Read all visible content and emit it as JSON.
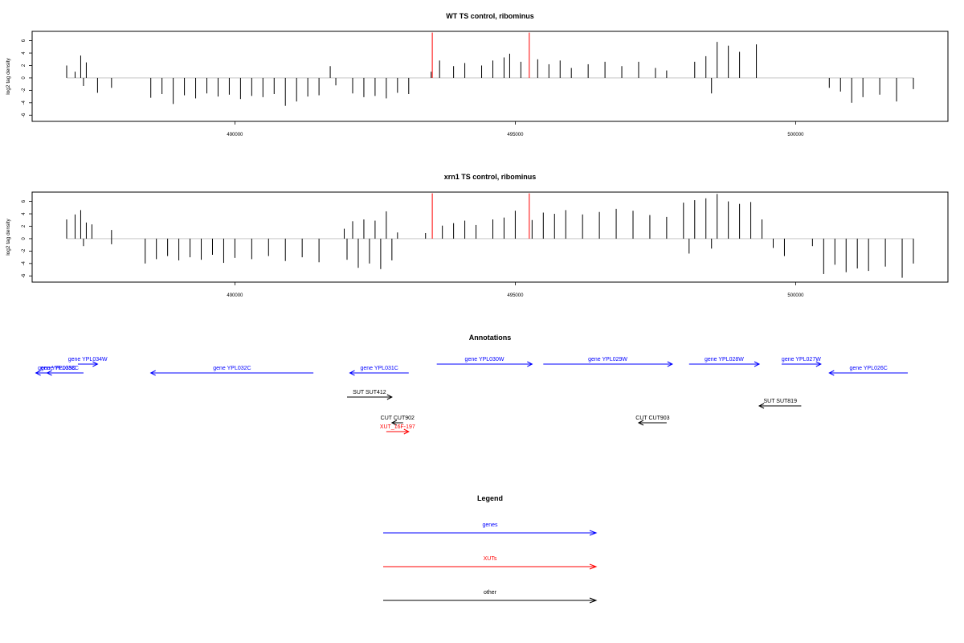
{
  "chart_data": [
    {
      "type": "bar",
      "title": "WT TS control, ribominus",
      "xlabel": "",
      "ylabel": "log2 tag density",
      "xlim": [
        486000,
        502700
      ],
      "ylim": [
        -7,
        7.5
      ],
      "yticks": [
        -6,
        -4,
        -2,
        0,
        2,
        4,
        6
      ],
      "xticks": [
        490000,
        495000,
        500000
      ],
      "grid": false,
      "series": [
        {
          "values": [
            {
              "x": 487000,
              "y": 2.0
            },
            {
              "x": 487150,
              "y": 1.0
            },
            {
              "x": 487250,
              "y": 3.6
            },
            {
              "x": 487350,
              "y": 2.5
            },
            {
              "x": 487300,
              "y": -1.3
            },
            {
              "x": 487550,
              "y": -2.4
            },
            {
              "x": 487800,
              "y": -1.6
            },
            {
              "x": 488500,
              "y": -3.2
            },
            {
              "x": 488700,
              "y": -2.6
            },
            {
              "x": 488900,
              "y": -4.2
            },
            {
              "x": 489100,
              "y": -2.8
            },
            {
              "x": 489300,
              "y": -3.3
            },
            {
              "x": 489500,
              "y": -2.5
            },
            {
              "x": 489700,
              "y": -3.0
            },
            {
              "x": 489900,
              "y": -2.7
            },
            {
              "x": 490100,
              "y": -3.4
            },
            {
              "x": 490300,
              "y": -2.9
            },
            {
              "x": 490500,
              "y": -3.1
            },
            {
              "x": 490700,
              "y": -2.6
            },
            {
              "x": 490900,
              "y": -4.5
            },
            {
              "x": 491100,
              "y": -3.8
            },
            {
              "x": 491300,
              "y": -3.0
            },
            {
              "x": 491500,
              "y": -2.8
            },
            {
              "x": 491700,
              "y": 1.9
            },
            {
              "x": 491800,
              "y": -1.2
            },
            {
              "x": 492100,
              "y": -2.5
            },
            {
              "x": 492300,
              "y": -3.1
            },
            {
              "x": 492500,
              "y": -2.9
            },
            {
              "x": 492700,
              "y": -3.3
            },
            {
              "x": 492900,
              "y": -2.4
            },
            {
              "x": 493100,
              "y": -2.6
            },
            {
              "x": 493500,
              "y": 1.0
            },
            {
              "x": 493650,
              "y": 2.8
            },
            {
              "x": 493900,
              "y": 1.9
            },
            {
              "x": 494100,
              "y": 2.4
            },
            {
              "x": 494400,
              "y": 2.0
            },
            {
              "x": 494600,
              "y": 2.8
            },
            {
              "x": 494800,
              "y": 3.3
            },
            {
              "x": 494900,
              "y": 3.9
            },
            {
              "x": 495100,
              "y": 2.6
            },
            {
              "x": 495400,
              "y": 3.0
            },
            {
              "x": 495600,
              "y": 2.2
            },
            {
              "x": 495800,
              "y": 2.8
            },
            {
              "x": 496000,
              "y": 1.6
            },
            {
              "x": 496300,
              "y": 2.2
            },
            {
              "x": 496600,
              "y": 2.6
            },
            {
              "x": 496900,
              "y": 1.9
            },
            {
              "x": 497200,
              "y": 2.6
            },
            {
              "x": 497500,
              "y": 1.6
            },
            {
              "x": 497700,
              "y": 1.2
            },
            {
              "x": 498200,
              "y": 2.6
            },
            {
              "x": 498400,
              "y": 3.5
            },
            {
              "x": 498600,
              "y": 5.8
            },
            {
              "x": 498800,
              "y": 5.2
            },
            {
              "x": 499000,
              "y": 4.2
            },
            {
              "x": 499300,
              "y": 5.4
            },
            {
              "x": 498500,
              "y": -2.5
            },
            {
              "x": 500600,
              "y": -1.6
            },
            {
              "x": 500800,
              "y": -2.2
            },
            {
              "x": 501000,
              "y": -4.0
            },
            {
              "x": 501200,
              "y": -3.1
            },
            {
              "x": 501500,
              "y": -2.7
            },
            {
              "x": 501800,
              "y": -3.8
            },
            {
              "x": 502100,
              "y": -1.8
            }
          ]
        },
        {
          "name": "highlighted positions",
          "values": [
            {
              "x": 493520,
              "y": 7.3
            },
            {
              "x": 495250,
              "y": 7.3
            }
          ]
        }
      ]
    },
    {
      "type": "bar",
      "title": "xrn1 TS control, ribominus",
      "xlabel": "",
      "ylabel": "log2 tag density",
      "xlim": [
        486000,
        502700
      ],
      "ylim": [
        -7,
        7.5
      ],
      "yticks": [
        -6,
        -4,
        -2,
        0,
        2,
        4,
        6
      ],
      "xticks": [
        490000,
        495000,
        500000
      ],
      "grid": false,
      "series": [
        {
          "values": [
            {
              "x": 487000,
              "y": 3.1
            },
            {
              "x": 487150,
              "y": 3.9
            },
            {
              "x": 487250,
              "y": 4.6
            },
            {
              "x": 487350,
              "y": 2.6
            },
            {
              "x": 487450,
              "y": 2.3
            },
            {
              "x": 487300,
              "y": -1.2
            },
            {
              "x": 487800,
              "y": 1.4
            },
            {
              "x": 487800,
              "y": -0.9
            },
            {
              "x": 488400,
              "y": -4.0
            },
            {
              "x": 488600,
              "y": -3.3
            },
            {
              "x": 488800,
              "y": -2.8
            },
            {
              "x": 489000,
              "y": -3.5
            },
            {
              "x": 489200,
              "y": -3.0
            },
            {
              "x": 489400,
              "y": -3.4
            },
            {
              "x": 489600,
              "y": -2.6
            },
            {
              "x": 489800,
              "y": -3.9
            },
            {
              "x": 490000,
              "y": -3.1
            },
            {
              "x": 490300,
              "y": -3.3
            },
            {
              "x": 490600,
              "y": -2.8
            },
            {
              "x": 490900,
              "y": -3.6
            },
            {
              "x": 491200,
              "y": -3.0
            },
            {
              "x": 491500,
              "y": -3.8
            },
            {
              "x": 491950,
              "y": 1.6
            },
            {
              "x": 492100,
              "y": 2.8
            },
            {
              "x": 492300,
              "y": 3.1
            },
            {
              "x": 492500,
              "y": 2.9
            },
            {
              "x": 492700,
              "y": 4.4
            },
            {
              "x": 492900,
              "y": 1.0
            },
            {
              "x": 492000,
              "y": -3.4
            },
            {
              "x": 492200,
              "y": -4.7
            },
            {
              "x": 492400,
              "y": -4.0
            },
            {
              "x": 492600,
              "y": -4.9
            },
            {
              "x": 492800,
              "y": -3.5
            },
            {
              "x": 493400,
              "y": 0.9
            },
            {
              "x": 493700,
              "y": 2.1
            },
            {
              "x": 493900,
              "y": 2.5
            },
            {
              "x": 494100,
              "y": 2.9
            },
            {
              "x": 494300,
              "y": 2.2
            },
            {
              "x": 494600,
              "y": 3.1
            },
            {
              "x": 494800,
              "y": 3.4
            },
            {
              "x": 495000,
              "y": 4.5
            },
            {
              "x": 495300,
              "y": 3.0
            },
            {
              "x": 495500,
              "y": 4.2
            },
            {
              "x": 495700,
              "y": 4.0
            },
            {
              "x": 495900,
              "y": 4.6
            },
            {
              "x": 496200,
              "y": 3.9
            },
            {
              "x": 496500,
              "y": 4.3
            },
            {
              "x": 496800,
              "y": 4.8
            },
            {
              "x": 497100,
              "y": 4.5
            },
            {
              "x": 497400,
              "y": 3.8
            },
            {
              "x": 497700,
              "y": 3.5
            },
            {
              "x": 498000,
              "y": 5.8
            },
            {
              "x": 498200,
              "y": 6.2
            },
            {
              "x": 498400,
              "y": 6.5
            },
            {
              "x": 498600,
              "y": 7.2
            },
            {
              "x": 498800,
              "y": 6.0
            },
            {
              "x": 499000,
              "y": 5.6
            },
            {
              "x": 499200,
              "y": 5.9
            },
            {
              "x": 499400,
              "y": 3.1
            },
            {
              "x": 498100,
              "y": -2.4
            },
            {
              "x": 498500,
              "y": -1.6
            },
            {
              "x": 499600,
              "y": -1.5
            },
            {
              "x": 499800,
              "y": -2.8
            },
            {
              "x": 500300,
              "y": -1.2
            },
            {
              "x": 500500,
              "y": -5.7
            },
            {
              "x": 500700,
              "y": -4.2
            },
            {
              "x": 500900,
              "y": -5.4
            },
            {
              "x": 501100,
              "y": -4.8
            },
            {
              "x": 501300,
              "y": -5.2
            },
            {
              "x": 501600,
              "y": -4.5
            },
            {
              "x": 501900,
              "y": -6.3
            },
            {
              "x": 502100,
              "y": -4.0
            }
          ]
        },
        {
          "name": "highlighted positions",
          "values": [
            {
              "x": 493520,
              "y": 7.3
            },
            {
              "x": 495250,
              "y": 7.3
            }
          ]
        }
      ]
    }
  ],
  "annotations": {
    "title": "Annotations",
    "features": [
      {
        "label": "gene YPL034W",
        "start": 487200,
        "end": 487550,
        "row": 1,
        "kind": "gene"
      },
      {
        "label": "gene YPL035C",
        "start": 487000,
        "end": 486650,
        "row": 2,
        "kind": "gene"
      },
      {
        "label": "gene YPL033C",
        "start": 487300,
        "end": 486450,
        "row": 2,
        "kind": "gene"
      },
      {
        "label": "gene YPL032C",
        "start": 491400,
        "end": 488500,
        "row": 2,
        "kind": "gene"
      },
      {
        "label": "gene YPL031C",
        "start": 493100,
        "end": 492050,
        "row": 2,
        "kind": "gene"
      },
      {
        "label": "gene YPL030W",
        "start": 493600,
        "end": 495300,
        "row": 1,
        "kind": "gene"
      },
      {
        "label": "gene YPL029W",
        "start": 495500,
        "end": 497800,
        "row": 1,
        "kind": "gene"
      },
      {
        "label": "gene YPL028W",
        "start": 498100,
        "end": 499350,
        "row": 1,
        "kind": "gene"
      },
      {
        "label": "gene YPL027W",
        "start": 499750,
        "end": 500450,
        "row": 1,
        "kind": "gene"
      },
      {
        "label": "gene YPL026C",
        "start": 502000,
        "end": 500600,
        "row": 2,
        "kind": "gene"
      },
      {
        "label": "SUT SUT412",
        "start": 492000,
        "end": 492800,
        "row": 3,
        "kind": "other"
      },
      {
        "label": "SUT SUT819",
        "start": 500100,
        "end": 499350,
        "row": 4,
        "kind": "other"
      },
      {
        "label": "CUT CUT902",
        "start": 493000,
        "end": 492800,
        "row": 5,
        "kind": "other"
      },
      {
        "label": "CUT CUT903",
        "start": 497700,
        "end": 497200,
        "row": 5,
        "kind": "other"
      },
      {
        "label": "XUT_16F-197",
        "start": 492700,
        "end": 493100,
        "row": 6,
        "kind": "xut"
      }
    ]
  },
  "legend": {
    "title": "Legend",
    "entries": [
      {
        "label": "genes",
        "color": "#0000ff"
      },
      {
        "label": "XUTs",
        "color": "#ff0000"
      },
      {
        "label": "other",
        "color": "#000000"
      }
    ]
  },
  "colors": {
    "data": "#000000",
    "highlight": "#ff0000",
    "baseline": "#bebebe",
    "gene": "#0000ff",
    "xut": "#ff0000",
    "other": "#000000"
  }
}
